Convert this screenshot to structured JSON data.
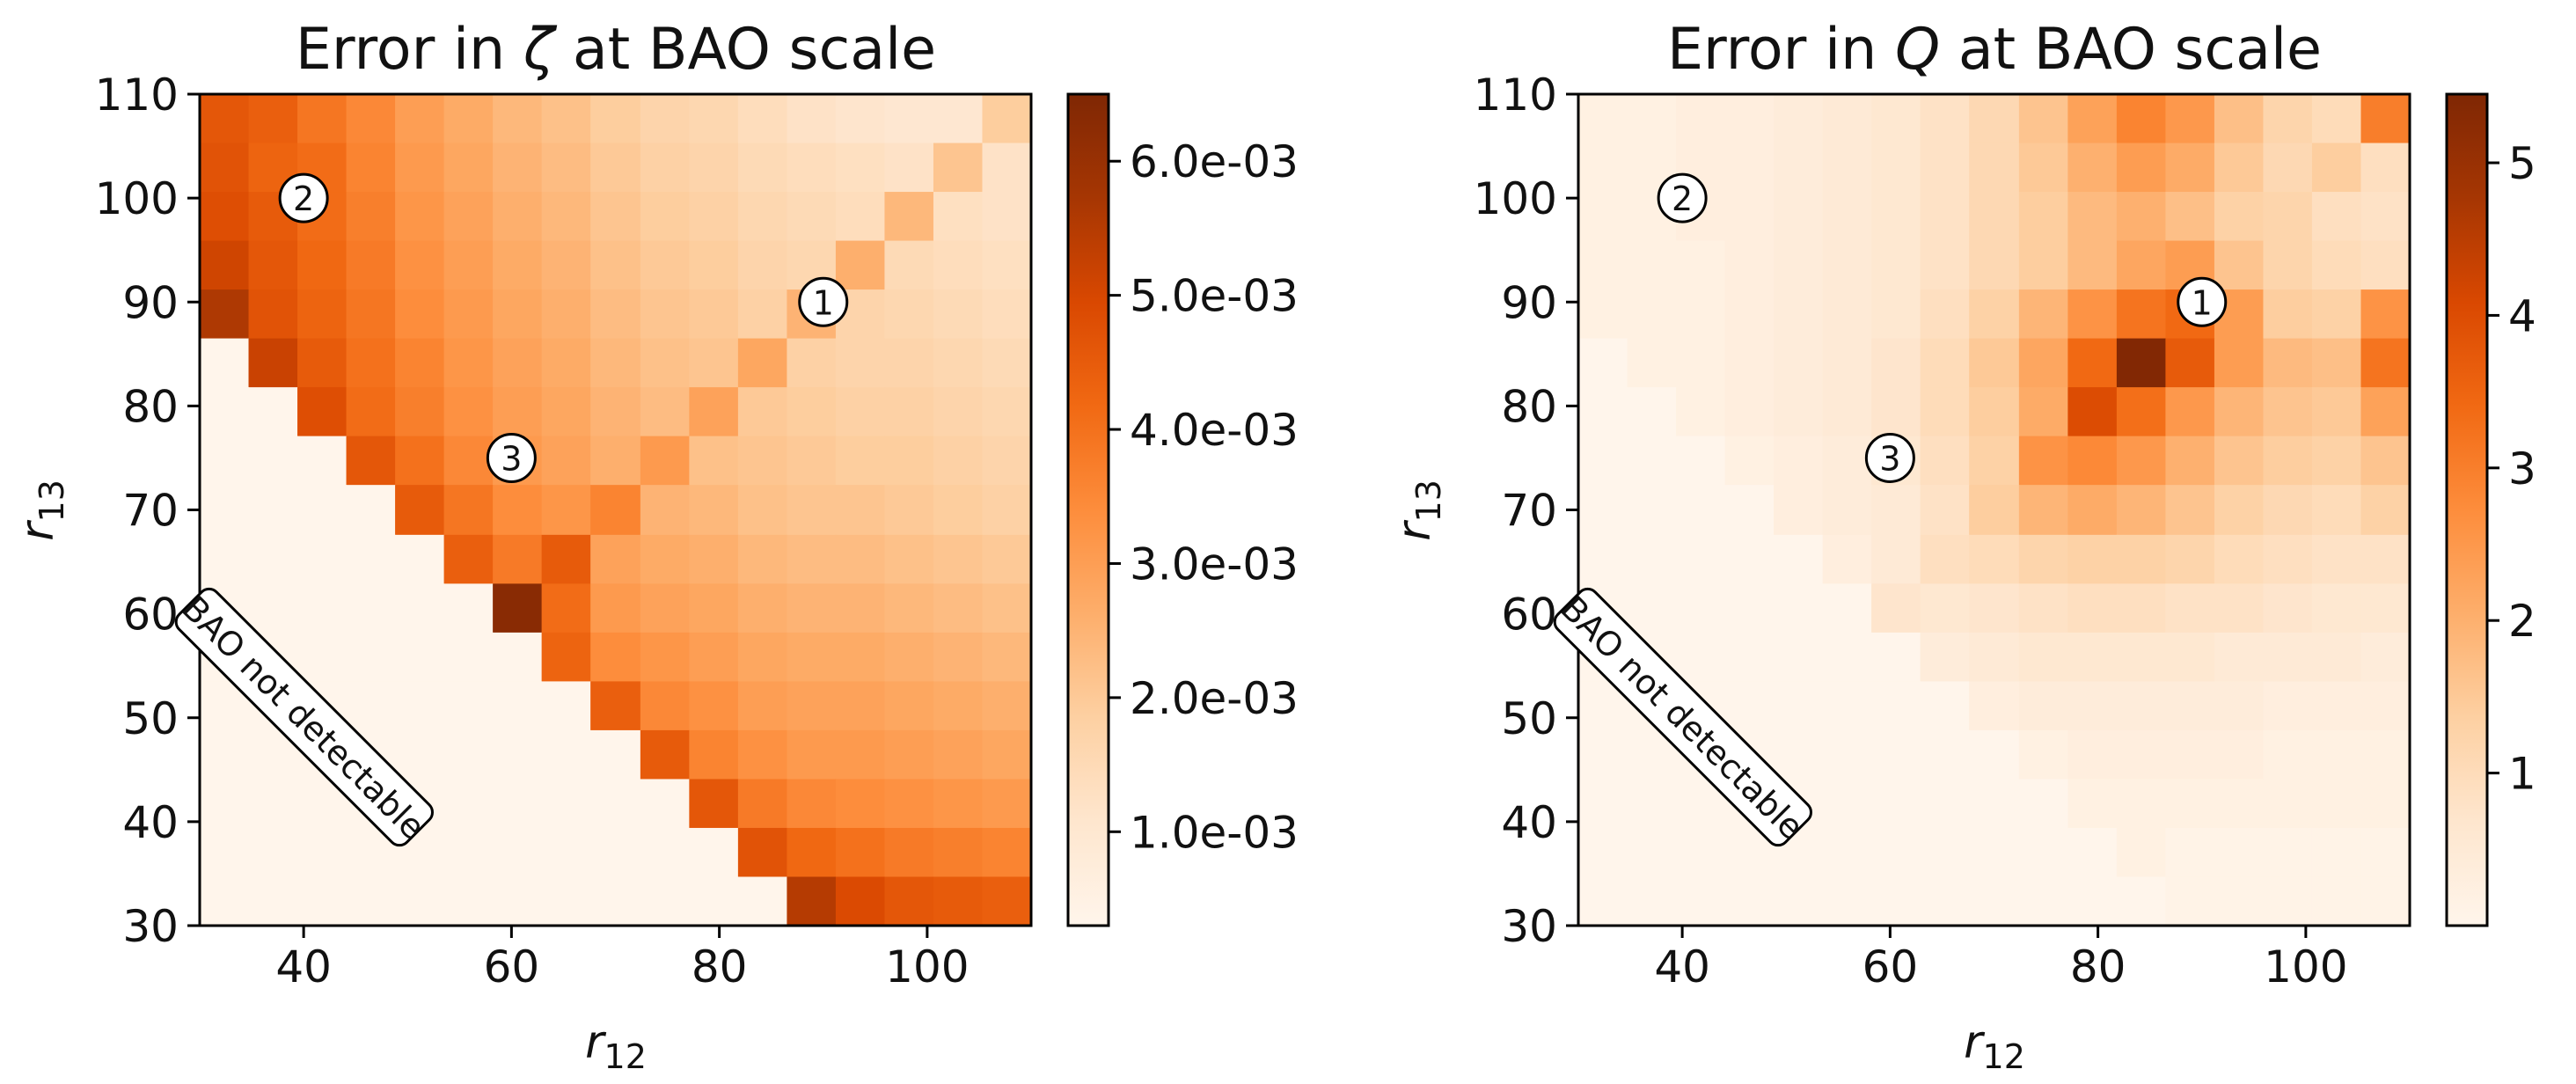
{
  "chart_data": [
    {
      "type": "heatmap",
      "title": "Error in ζ at BAO scale",
      "title_parts": {
        "pre": "Error in ",
        "sym": "ζ",
        "post": " at BAO scale"
      },
      "xlabel": "r12",
      "xlabel_parts": {
        "base": "r",
        "sub": "12"
      },
      "ylabel": "r13",
      "ylabel_parts": {
        "base": "r",
        "sub": "13"
      },
      "x_ticks": [
        "40",
        "60",
        "80",
        "100"
      ],
      "x_tick_values": [
        40,
        60,
        80,
        100
      ],
      "y_ticks": [
        "30",
        "40",
        "50",
        "60",
        "70",
        "80",
        "90",
        "100",
        "110"
      ],
      "y_tick_values": [
        30,
        40,
        50,
        60,
        70,
        80,
        90,
        100,
        110
      ],
      "xlim": [
        30,
        110
      ],
      "ylim": [
        30,
        110
      ],
      "bin_edges": [
        30,
        34.7,
        39.4,
        44.1,
        48.8,
        53.5,
        58.2,
        62.9,
        67.6,
        72.4,
        77.1,
        81.8,
        86.5,
        91.2,
        95.9,
        100.6,
        105.3,
        110
      ],
      "colormap": "Oranges",
      "colorbar": {
        "min": 0.0003,
        "max": 0.0065,
        "ticks": [
          "1.0e-03",
          "2.0e-03",
          "3.0e-03",
          "4.0e-03",
          "5.0e-03",
          "6.0e-03"
        ],
        "tick_values": [
          0.001,
          0.002,
          0.003,
          0.004,
          0.005,
          0.006
        ]
      },
      "values_note": "rows from r13=110 (top) down to r13=30, columns r12=30..110; cells below detectability diagonal shown at minimum",
      "values": [
        [
          0.0046,
          0.0044,
          0.0039,
          0.0035,
          0.003,
          0.0027,
          0.0024,
          0.0022,
          0.0019,
          0.0017,
          0.0016,
          0.0014,
          0.0012,
          0.0011,
          0.001,
          0.001,
          0.0019
        ],
        [
          0.0047,
          0.0043,
          0.0041,
          0.0036,
          0.0031,
          0.0028,
          0.0025,
          0.0023,
          0.002,
          0.0018,
          0.0017,
          0.0015,
          0.0014,
          0.0013,
          0.0012,
          0.0021,
          0.0012
        ],
        [
          0.0048,
          0.0045,
          0.0041,
          0.0037,
          0.0032,
          0.0029,
          0.0026,
          0.0024,
          0.0021,
          0.0019,
          0.0018,
          0.0016,
          0.0015,
          0.0014,
          0.0024,
          0.0013,
          0.0012
        ],
        [
          0.0051,
          0.0046,
          0.0042,
          0.0038,
          0.0033,
          0.003,
          0.0027,
          0.0025,
          0.0022,
          0.002,
          0.0019,
          0.0017,
          0.0016,
          0.0026,
          0.0015,
          0.0014,
          0.0013
        ],
        [
          0.0056,
          0.0047,
          0.0043,
          0.0039,
          0.0034,
          0.0031,
          0.0028,
          0.0026,
          0.0023,
          0.0021,
          0.002,
          0.0018,
          0.0025,
          0.0017,
          0.0016,
          0.0015,
          0.0014
        ],
        [
          0.0003,
          0.0052,
          0.0045,
          0.004,
          0.0036,
          0.0032,
          0.0029,
          0.0027,
          0.0024,
          0.0022,
          0.0021,
          0.0028,
          0.0018,
          0.0017,
          0.0017,
          0.0016,
          0.0015
        ],
        [
          0.0003,
          0.0003,
          0.0048,
          0.0041,
          0.0037,
          0.0033,
          0.003,
          0.0028,
          0.0025,
          0.0023,
          0.0029,
          0.002,
          0.0019,
          0.0018,
          0.0018,
          0.0017,
          0.0016
        ],
        [
          0.0003,
          0.0003,
          0.0003,
          0.0046,
          0.004,
          0.0035,
          0.0031,
          0.0029,
          0.0026,
          0.0031,
          0.0022,
          0.0021,
          0.002,
          0.0019,
          0.0019,
          0.0018,
          0.0017
        ],
        [
          0.0003,
          0.0003,
          0.0003,
          0.0003,
          0.0045,
          0.0039,
          0.0034,
          0.0032,
          0.0036,
          0.0025,
          0.0024,
          0.0022,
          0.0021,
          0.0021,
          0.002,
          0.0019,
          0.0018
        ],
        [
          0.0003,
          0.0003,
          0.0003,
          0.0003,
          0.0003,
          0.0044,
          0.0038,
          0.0045,
          0.0029,
          0.0027,
          0.0026,
          0.0024,
          0.0023,
          0.0023,
          0.0022,
          0.0021,
          0.002
        ],
        [
          0.0003,
          0.0003,
          0.0003,
          0.0003,
          0.0003,
          0.0003,
          0.0063,
          0.0041,
          0.0031,
          0.0029,
          0.0028,
          0.0026,
          0.0025,
          0.0025,
          0.0024,
          0.0023,
          0.0022
        ],
        [
          0.0003,
          0.0003,
          0.0003,
          0.0003,
          0.0003,
          0.0003,
          0.0003,
          0.0043,
          0.0034,
          0.0032,
          0.003,
          0.0028,
          0.0027,
          0.0027,
          0.0026,
          0.0025,
          0.0024
        ],
        [
          0.0003,
          0.0003,
          0.0003,
          0.0003,
          0.0003,
          0.0003,
          0.0003,
          0.0003,
          0.0044,
          0.0035,
          0.0033,
          0.003,
          0.0029,
          0.0029,
          0.0028,
          0.0027,
          0.0026
        ],
        [
          0.0003,
          0.0003,
          0.0003,
          0.0003,
          0.0003,
          0.0003,
          0.0003,
          0.0003,
          0.0003,
          0.0045,
          0.0036,
          0.0033,
          0.0031,
          0.0031,
          0.003,
          0.0029,
          0.0028
        ],
        [
          0.0003,
          0.0003,
          0.0003,
          0.0003,
          0.0003,
          0.0003,
          0.0003,
          0.0003,
          0.0003,
          0.0003,
          0.0046,
          0.0038,
          0.0035,
          0.0034,
          0.0033,
          0.0032,
          0.0031
        ],
        [
          0.0003,
          0.0003,
          0.0003,
          0.0003,
          0.0003,
          0.0003,
          0.0003,
          0.0003,
          0.0003,
          0.0003,
          0.0003,
          0.0047,
          0.0042,
          0.004,
          0.0038,
          0.0037,
          0.0036
        ],
        [
          0.0003,
          0.0003,
          0.0003,
          0.0003,
          0.0003,
          0.0003,
          0.0003,
          0.0003,
          0.0003,
          0.0003,
          0.0003,
          0.0003,
          0.0055,
          0.0049,
          0.0046,
          0.0045,
          0.0044
        ]
      ],
      "markers": [
        {
          "label": "1",
          "x": 90,
          "y": 90
        },
        {
          "label": "2",
          "x": 40,
          "y": 100
        },
        {
          "label": "3",
          "x": 60,
          "y": 75
        }
      ],
      "annotation": {
        "text": "BAO not detectable",
        "x": 40,
        "y": 50,
        "rotation_deg": 45
      }
    },
    {
      "type": "heatmap",
      "title": "Error in Q at BAO scale",
      "title_parts": {
        "pre": "Error in ",
        "sym": "Q",
        "post": " at BAO scale"
      },
      "xlabel": "r12",
      "xlabel_parts": {
        "base": "r",
        "sub": "12"
      },
      "ylabel": "r13",
      "ylabel_parts": {
        "base": "r",
        "sub": "13"
      },
      "x_ticks": [
        "40",
        "60",
        "80",
        "100"
      ],
      "x_tick_values": [
        40,
        60,
        80,
        100
      ],
      "y_ticks": [
        "30",
        "40",
        "50",
        "60",
        "70",
        "80",
        "90",
        "100",
        "110"
      ],
      "y_tick_values": [
        30,
        40,
        50,
        60,
        70,
        80,
        90,
        100,
        110
      ],
      "xlim": [
        30,
        110
      ],
      "ylim": [
        30,
        110
      ],
      "bin_edges": [
        30,
        34.7,
        39.4,
        44.1,
        48.8,
        53.5,
        58.2,
        62.9,
        67.6,
        72.4,
        77.1,
        81.8,
        86.5,
        91.2,
        95.9,
        100.6,
        105.3,
        110
      ],
      "colormap": "Oranges",
      "colorbar": {
        "min": 0.0,
        "max": 5.45,
        "ticks": [
          "1",
          "2",
          "3",
          "4",
          "5"
        ],
        "tick_values": [
          1,
          2,
          3,
          4,
          5
        ]
      },
      "values_note": "rows from r13=110 (top) down to r13=30, columns r12=30..110",
      "values": [
        [
          0.2,
          0.2,
          0.3,
          0.3,
          0.4,
          0.5,
          0.6,
          0.8,
          1.1,
          1.6,
          2.3,
          2.9,
          2.5,
          1.7,
          1.2,
          1.0,
          3.0
        ],
        [
          0.2,
          0.2,
          0.3,
          0.3,
          0.4,
          0.5,
          0.6,
          0.8,
          1.1,
          1.5,
          2.0,
          2.4,
          2.1,
          1.5,
          1.1,
          1.4,
          0.9
        ],
        [
          0.2,
          0.2,
          0.3,
          0.3,
          0.4,
          0.5,
          0.6,
          0.8,
          1.1,
          1.4,
          1.8,
          2.0,
          1.7,
          1.3,
          1.2,
          0.9,
          0.8
        ],
        [
          0.2,
          0.2,
          0.2,
          0.3,
          0.4,
          0.5,
          0.6,
          0.8,
          1.1,
          1.4,
          1.8,
          2.2,
          2.4,
          1.6,
          1.2,
          1.0,
          0.9
        ],
        [
          0.2,
          0.2,
          0.2,
          0.3,
          0.4,
          0.5,
          0.6,
          0.9,
          1.3,
          1.9,
          2.6,
          3.2,
          3.4,
          2.4,
          1.4,
          1.3,
          2.6
        ],
        [
          0.0,
          0.2,
          0.2,
          0.3,
          0.4,
          0.5,
          0.7,
          1.0,
          1.5,
          2.2,
          3.4,
          5.4,
          3.7,
          2.4,
          1.8,
          1.7,
          3.2
        ],
        [
          0.0,
          0.0,
          0.2,
          0.3,
          0.4,
          0.5,
          0.7,
          1.0,
          1.4,
          2.1,
          4.0,
          3.3,
          2.5,
          1.9,
          1.6,
          1.5,
          2.3
        ],
        [
          0.0,
          0.0,
          0.0,
          0.2,
          0.3,
          0.4,
          0.6,
          0.9,
          1.3,
          2.6,
          2.8,
          2.5,
          2.0,
          1.6,
          1.4,
          1.3,
          1.6
        ],
        [
          0.0,
          0.0,
          0.0,
          0.0,
          0.3,
          0.4,
          0.5,
          0.8,
          1.4,
          1.9,
          2.1,
          1.9,
          1.6,
          1.3,
          1.1,
          1.0,
          1.3
        ],
        [
          0.0,
          0.0,
          0.0,
          0.0,
          0.0,
          0.3,
          0.5,
          0.9,
          1.0,
          1.2,
          1.3,
          1.3,
          1.2,
          1.0,
          0.9,
          0.8,
          0.8
        ],
        [
          0.0,
          0.0,
          0.0,
          0.0,
          0.0,
          0.0,
          0.7,
          0.6,
          0.7,
          0.8,
          0.9,
          0.9,
          0.8,
          0.8,
          0.7,
          0.6,
          0.6
        ],
        [
          0.0,
          0.0,
          0.0,
          0.0,
          0.0,
          0.0,
          0.0,
          0.4,
          0.5,
          0.6,
          0.6,
          0.6,
          0.6,
          0.5,
          0.5,
          0.5,
          0.4
        ],
        [
          0.0,
          0.0,
          0.0,
          0.0,
          0.0,
          0.0,
          0.0,
          0.0,
          0.3,
          0.4,
          0.4,
          0.4,
          0.4,
          0.4,
          0.3,
          0.3,
          0.3
        ],
        [
          0.0,
          0.0,
          0.0,
          0.0,
          0.0,
          0.0,
          0.0,
          0.0,
          0.0,
          0.2,
          0.3,
          0.3,
          0.3,
          0.3,
          0.2,
          0.2,
          0.2
        ],
        [
          0.0,
          0.0,
          0.0,
          0.0,
          0.0,
          0.0,
          0.0,
          0.0,
          0.0,
          0.0,
          0.2,
          0.2,
          0.2,
          0.2,
          0.2,
          0.2,
          0.2
        ],
        [
          0.0,
          0.0,
          0.0,
          0.0,
          0.0,
          0.0,
          0.0,
          0.0,
          0.0,
          0.0,
          0.0,
          0.2,
          0.1,
          0.1,
          0.1,
          0.1,
          0.1
        ],
        [
          0.0,
          0.0,
          0.0,
          0.0,
          0.0,
          0.0,
          0.0,
          0.0,
          0.0,
          0.0,
          0.0,
          0.0,
          0.1,
          0.1,
          0.1,
          0.1,
          0.1
        ]
      ],
      "markers": [
        {
          "label": "1",
          "x": 90,
          "y": 90
        },
        {
          "label": "2",
          "x": 40,
          "y": 100
        },
        {
          "label": "3",
          "x": 60,
          "y": 75
        }
      ],
      "annotation": {
        "text": "BAO not detectable",
        "x": 40,
        "y": 50,
        "rotation_deg": 45
      }
    }
  ]
}
